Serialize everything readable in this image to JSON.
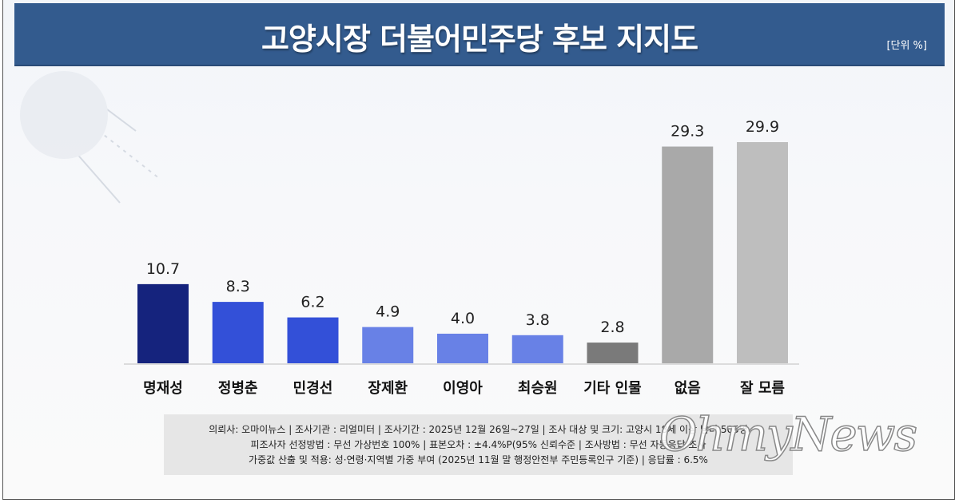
{
  "chart_data": {
    "type": "bar",
    "title": "고양시장 더불어민주당 후보 지지도",
    "unit_label": "[단위 %]",
    "categories": [
      "명재성",
      "정병춘",
      "민경선",
      "장제환",
      "이영아",
      "최승원",
      "기타 인물",
      "없음",
      "잘 모름"
    ],
    "values": [
      10.7,
      8.3,
      6.2,
      4.9,
      4.0,
      3.8,
      2.8,
      29.3,
      29.9
    ],
    "value_labels": [
      "10.7",
      "8.3",
      "6.2",
      "4.9",
      "4.0",
      "3.8",
      "2.8",
      "29.3",
      "29.9"
    ],
    "colors": [
      "#15237d",
      "#3350d8",
      "#3350d8",
      "#6881e6",
      "#6881e6",
      "#6881e6",
      "#7a7a7a",
      "#a9a9a9",
      "#bebebe"
    ],
    "ylim": [
      0,
      30
    ],
    "grid": false,
    "xlabel": "",
    "ylabel": ""
  },
  "footer": {
    "line1": "의뢰사: 오마이뉴스 | 조사기관 : 리얼미터  |  조사기간 : 2025년 12월 26일~27일 | 조사 대상 및 크기: 고양시 18세 이상 남녀 505명",
    "line2": "피조사자 선정방법 : 무선 가상번호 100% | 표본오차 : ±4.4%P(95% 신뢰수준 | 조사방법 : 무선 자동응답 조사",
    "line3": "가중값 산출 및 적용: 성·연령·지역별 가중 부여 (2025년 11월 말 행정안전부 주민등록인구 기준) | 응답률 : 6.5%"
  },
  "watermark": "OhmyNews"
}
